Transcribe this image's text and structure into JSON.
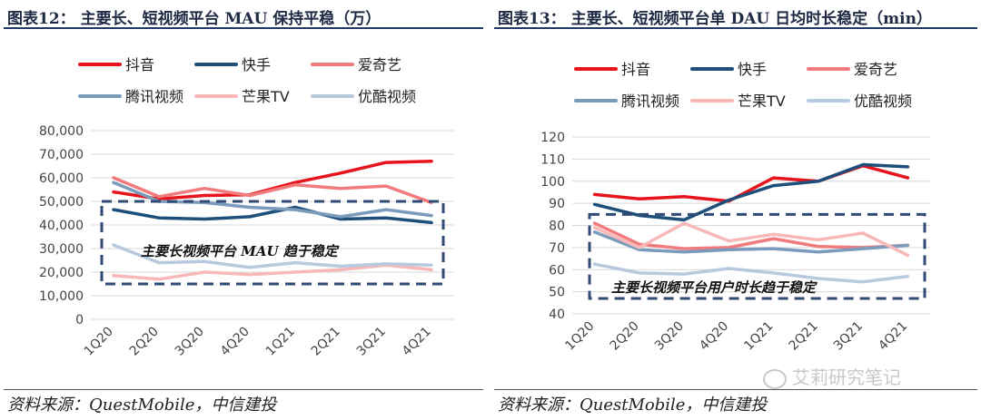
{
  "left": {
    "title": "图表12：  主要长、短视频平台 MAU 保持平稳（万）",
    "source": "资料来源：QuestMobile，中信建投",
    "chart_data": {
      "type": "line",
      "title": "主要长、短视频平台 MAU 保持平稳（万）",
      "categories": [
        "1Q20",
        "2Q20",
        "3Q20",
        "4Q20",
        "1Q21",
        "2Q21",
        "3Q21",
        "4Q21"
      ],
      "ylim": [
        0,
        80000
      ],
      "yticks": [
        0,
        10000,
        20000,
        30000,
        40000,
        50000,
        60000,
        70000,
        80000
      ],
      "ytick_labels": [
        "0",
        "10,000",
        "20,000",
        "30,000",
        "40,000",
        "50,000",
        "60,000",
        "70,000",
        "80,000"
      ],
      "series": [
        {
          "name": "抖音",
          "color": "#e8141c",
          "values": [
            54000,
            51000,
            52500,
            52800,
            58000,
            62000,
            66500,
            67000
          ]
        },
        {
          "name": "快手",
          "color": "#1d4f7a",
          "values": [
            46500,
            43000,
            42500,
            43500,
            47500,
            42500,
            43000,
            41000
          ]
        },
        {
          "name": "爱奇艺",
          "color": "#f27b7d",
          "values": [
            60000,
            52000,
            55500,
            52500,
            57000,
            55500,
            56500,
            49500
          ]
        },
        {
          "name": "腾讯视频",
          "color": "#7b9bbd",
          "values": [
            58000,
            50000,
            49500,
            47500,
            46500,
            43500,
            46500,
            44000
          ]
        },
        {
          "name": "芒果TV",
          "color": "#f8b8b8",
          "values": [
            18500,
            17000,
            20000,
            19000,
            20000,
            21000,
            23000,
            21000
          ]
        },
        {
          "name": "优酷视频",
          "color": "#b7c9dc",
          "values": [
            31500,
            24000,
            24500,
            22000,
            24000,
            22500,
            23500,
            23000
          ]
        }
      ],
      "annotation": "主要长视频平台 MAU 趋于稳定",
      "box_range": [
        15000,
        50000
      ]
    }
  },
  "right": {
    "title": "图表13：  主要长、短视频平台单 DAU 日均时长稳定（min）",
    "source": "资料来源：QuestMobile，中信建投",
    "chart_data": {
      "type": "line",
      "title": "主要长、短视频平台单 DAU 日均时长稳定（min）",
      "categories": [
        "1Q20",
        "2Q20",
        "3Q20",
        "4Q20",
        "1Q21",
        "2Q21",
        "3Q21",
        "4Q21"
      ],
      "ylim": [
        40,
        120
      ],
      "yticks": [
        40,
        50,
        60,
        70,
        80,
        90,
        100,
        110,
        120
      ],
      "ytick_labels": [
        "40",
        "50",
        "60",
        "70",
        "80",
        "90",
        "100",
        "110",
        "120"
      ],
      "series": [
        {
          "name": "抖音",
          "color": "#e8141c",
          "values": [
            94,
            92,
            93,
            91,
            101.5,
            100,
            107,
            101.5
          ]
        },
        {
          "name": "快手",
          "color": "#1d4f7a",
          "values": [
            89.5,
            84.5,
            82.5,
            91.5,
            98,
            100,
            107.5,
            106.5
          ]
        },
        {
          "name": "爱奇艺",
          "color": "#f27b7d",
          "values": [
            81,
            71.5,
            69.5,
            70,
            74,
            70.5,
            70,
            71
          ]
        },
        {
          "name": "腾讯视频",
          "color": "#7b9bbd",
          "values": [
            77,
            69,
            68,
            69,
            69.5,
            68,
            69.5,
            71
          ]
        },
        {
          "name": "芒果TV",
          "color": "#f8b8b8",
          "values": [
            79,
            70,
            81,
            73,
            76,
            73.5,
            76.5,
            66.5
          ]
        },
        {
          "name": "优酷视频",
          "color": "#b7c9dc",
          "values": [
            62.5,
            58.5,
            58,
            60.5,
            58.5,
            56,
            54.5,
            57
          ]
        }
      ],
      "annotation": "主要长视频平台用户时长趋于稳定",
      "box_range": [
        47,
        85
      ]
    }
  },
  "watermark": "艾莉研究笔记"
}
